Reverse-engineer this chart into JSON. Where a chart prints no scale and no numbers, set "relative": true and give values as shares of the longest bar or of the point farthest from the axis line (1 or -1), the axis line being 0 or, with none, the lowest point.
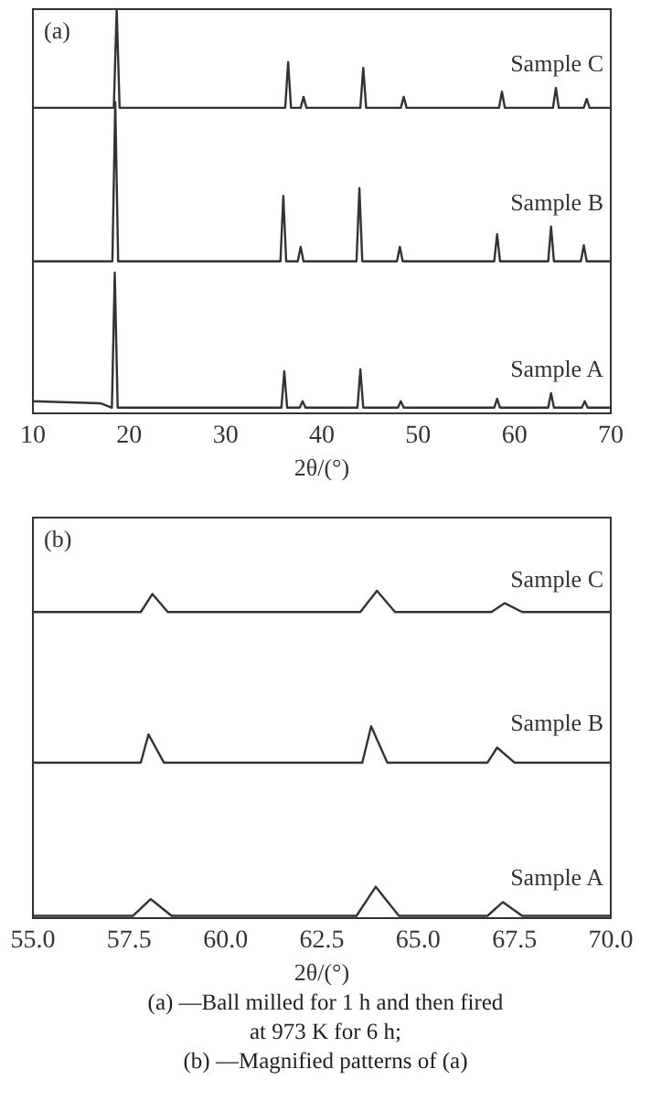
{
  "chart_data": [
    {
      "type": "line",
      "relative": true,
      "xlabel": "2θ/(°)",
      "xlim": [
        10,
        70
      ],
      "xticks": [
        10,
        20,
        30,
        40,
        50,
        60,
        70
      ],
      "annotations": [
        "(a)"
      ],
      "series": [
        {
          "name": "Sample C",
          "color": "#333333",
          "x": [
            10,
            18.4,
            18.7,
            19.0,
            36.2,
            36.5,
            36.8,
            37.8,
            38.1,
            38.4,
            44.0,
            44.3,
            44.6,
            48.2,
            48.5,
            48.8,
            58.4,
            58.7,
            59.0,
            64.0,
            64.3,
            64.6,
            67.2,
            67.5,
            67.8,
            70
          ],
          "values": [
            0.756,
            0.756,
            1.0,
            0.756,
            0.756,
            0.869,
            0.756,
            0.756,
            0.783,
            0.756,
            0.756,
            0.855,
            0.756,
            0.756,
            0.783,
            0.756,
            0.756,
            0.796,
            0.756,
            0.756,
            0.805,
            0.756,
            0.756,
            0.778,
            0.756,
            0.756
          ]
        },
        {
          "name": "Sample B",
          "color": "#333333",
          "x": [
            10,
            18.25,
            18.55,
            18.85,
            35.7,
            36.0,
            36.3,
            37.5,
            37.8,
            38.1,
            43.6,
            43.9,
            44.2,
            47.8,
            48.1,
            48.4,
            57.9,
            58.2,
            58.5,
            63.5,
            63.8,
            64.1,
            66.9,
            67.2,
            67.5,
            70
          ],
          "values": [
            0.376,
            0.376,
            0.77,
            0.376,
            0.376,
            0.538,
            0.376,
            0.376,
            0.412,
            0.376,
            0.376,
            0.557,
            0.376,
            0.376,
            0.412,
            0.376,
            0.376,
            0.443,
            0.376,
            0.376,
            0.462,
            0.376,
            0.376,
            0.416,
            0.376,
            0.376
          ]
        },
        {
          "name": "Sample A",
          "color": "#333333",
          "x": [
            10,
            17,
            18.2,
            18.5,
            18.8,
            35.8,
            36.1,
            36.4,
            37.7,
            38.0,
            38.3,
            43.7,
            44.0,
            44.3,
            47.9,
            48.2,
            48.5,
            57.9,
            58.2,
            58.5,
            63.5,
            63.8,
            64.1,
            67.0,
            67.3,
            67.6,
            70
          ],
          "values": [
            0.03,
            0.025,
            0.014,
            0.348,
            0.014,
            0.014,
            0.104,
            0.014,
            0.014,
            0.03,
            0.014,
            0.014,
            0.109,
            0.014,
            0.014,
            0.03,
            0.014,
            0.014,
            0.036,
            0.014,
            0.014,
            0.05,
            0.014,
            0.014,
            0.03,
            0.014,
            0.014
          ]
        }
      ]
    },
    {
      "type": "line",
      "relative": true,
      "xlabel": "2θ/(°)",
      "xlim": [
        55,
        70
      ],
      "xticks": [
        {
          "value": 55,
          "label": "55.0"
        },
        {
          "value": 57.5,
          "label": "57.5"
        },
        {
          "value": 60,
          "label": "60.0"
        },
        {
          "value": 62.5,
          "label": "62.5"
        },
        {
          "value": 65,
          "label": "65.0"
        },
        {
          "value": 67.5,
          "label": "67.5"
        },
        {
          "value": 70,
          "label": "70.0"
        }
      ],
      "annotations": [
        "(b)",
        "(a) —Ball milled for 1 h and then fired",
        "at 973 K for 6 h;",
        "(b) —Magnified patterns of (a)"
      ],
      "series": [
        {
          "name": "Sample C",
          "color": "#333333",
          "x": [
            55,
            57.8,
            58.1,
            58.5,
            63.5,
            63.93,
            64.4,
            66.9,
            67.25,
            67.7,
            70
          ],
          "values": [
            0.935,
            0.935,
            0.99,
            0.935,
            0.935,
            1.0,
            0.935,
            0.935,
            0.962,
            0.935,
            0.935
          ]
        },
        {
          "name": "Sample B",
          "color": "#333333",
          "x": [
            55,
            57.8,
            58.0,
            58.4,
            63.55,
            63.78,
            64.2,
            66.8,
            67.05,
            67.5,
            70
          ],
          "values": [
            0.475,
            0.475,
            0.561,
            0.475,
            0.475,
            0.586,
            0.475,
            0.475,
            0.521,
            0.475,
            0.475
          ]
        },
        {
          "name": "Sample A",
          "color": "#333333",
          "x": [
            55,
            57.6,
            58.06,
            58.6,
            63.4,
            63.9,
            64.5,
            66.8,
            67.2,
            67.7,
            70
          ],
          "values": [
            0.007,
            0.007,
            0.058,
            0.007,
            0.007,
            0.096,
            0.007,
            0.007,
            0.049,
            0.007,
            0.007
          ]
        }
      ]
    }
  ]
}
